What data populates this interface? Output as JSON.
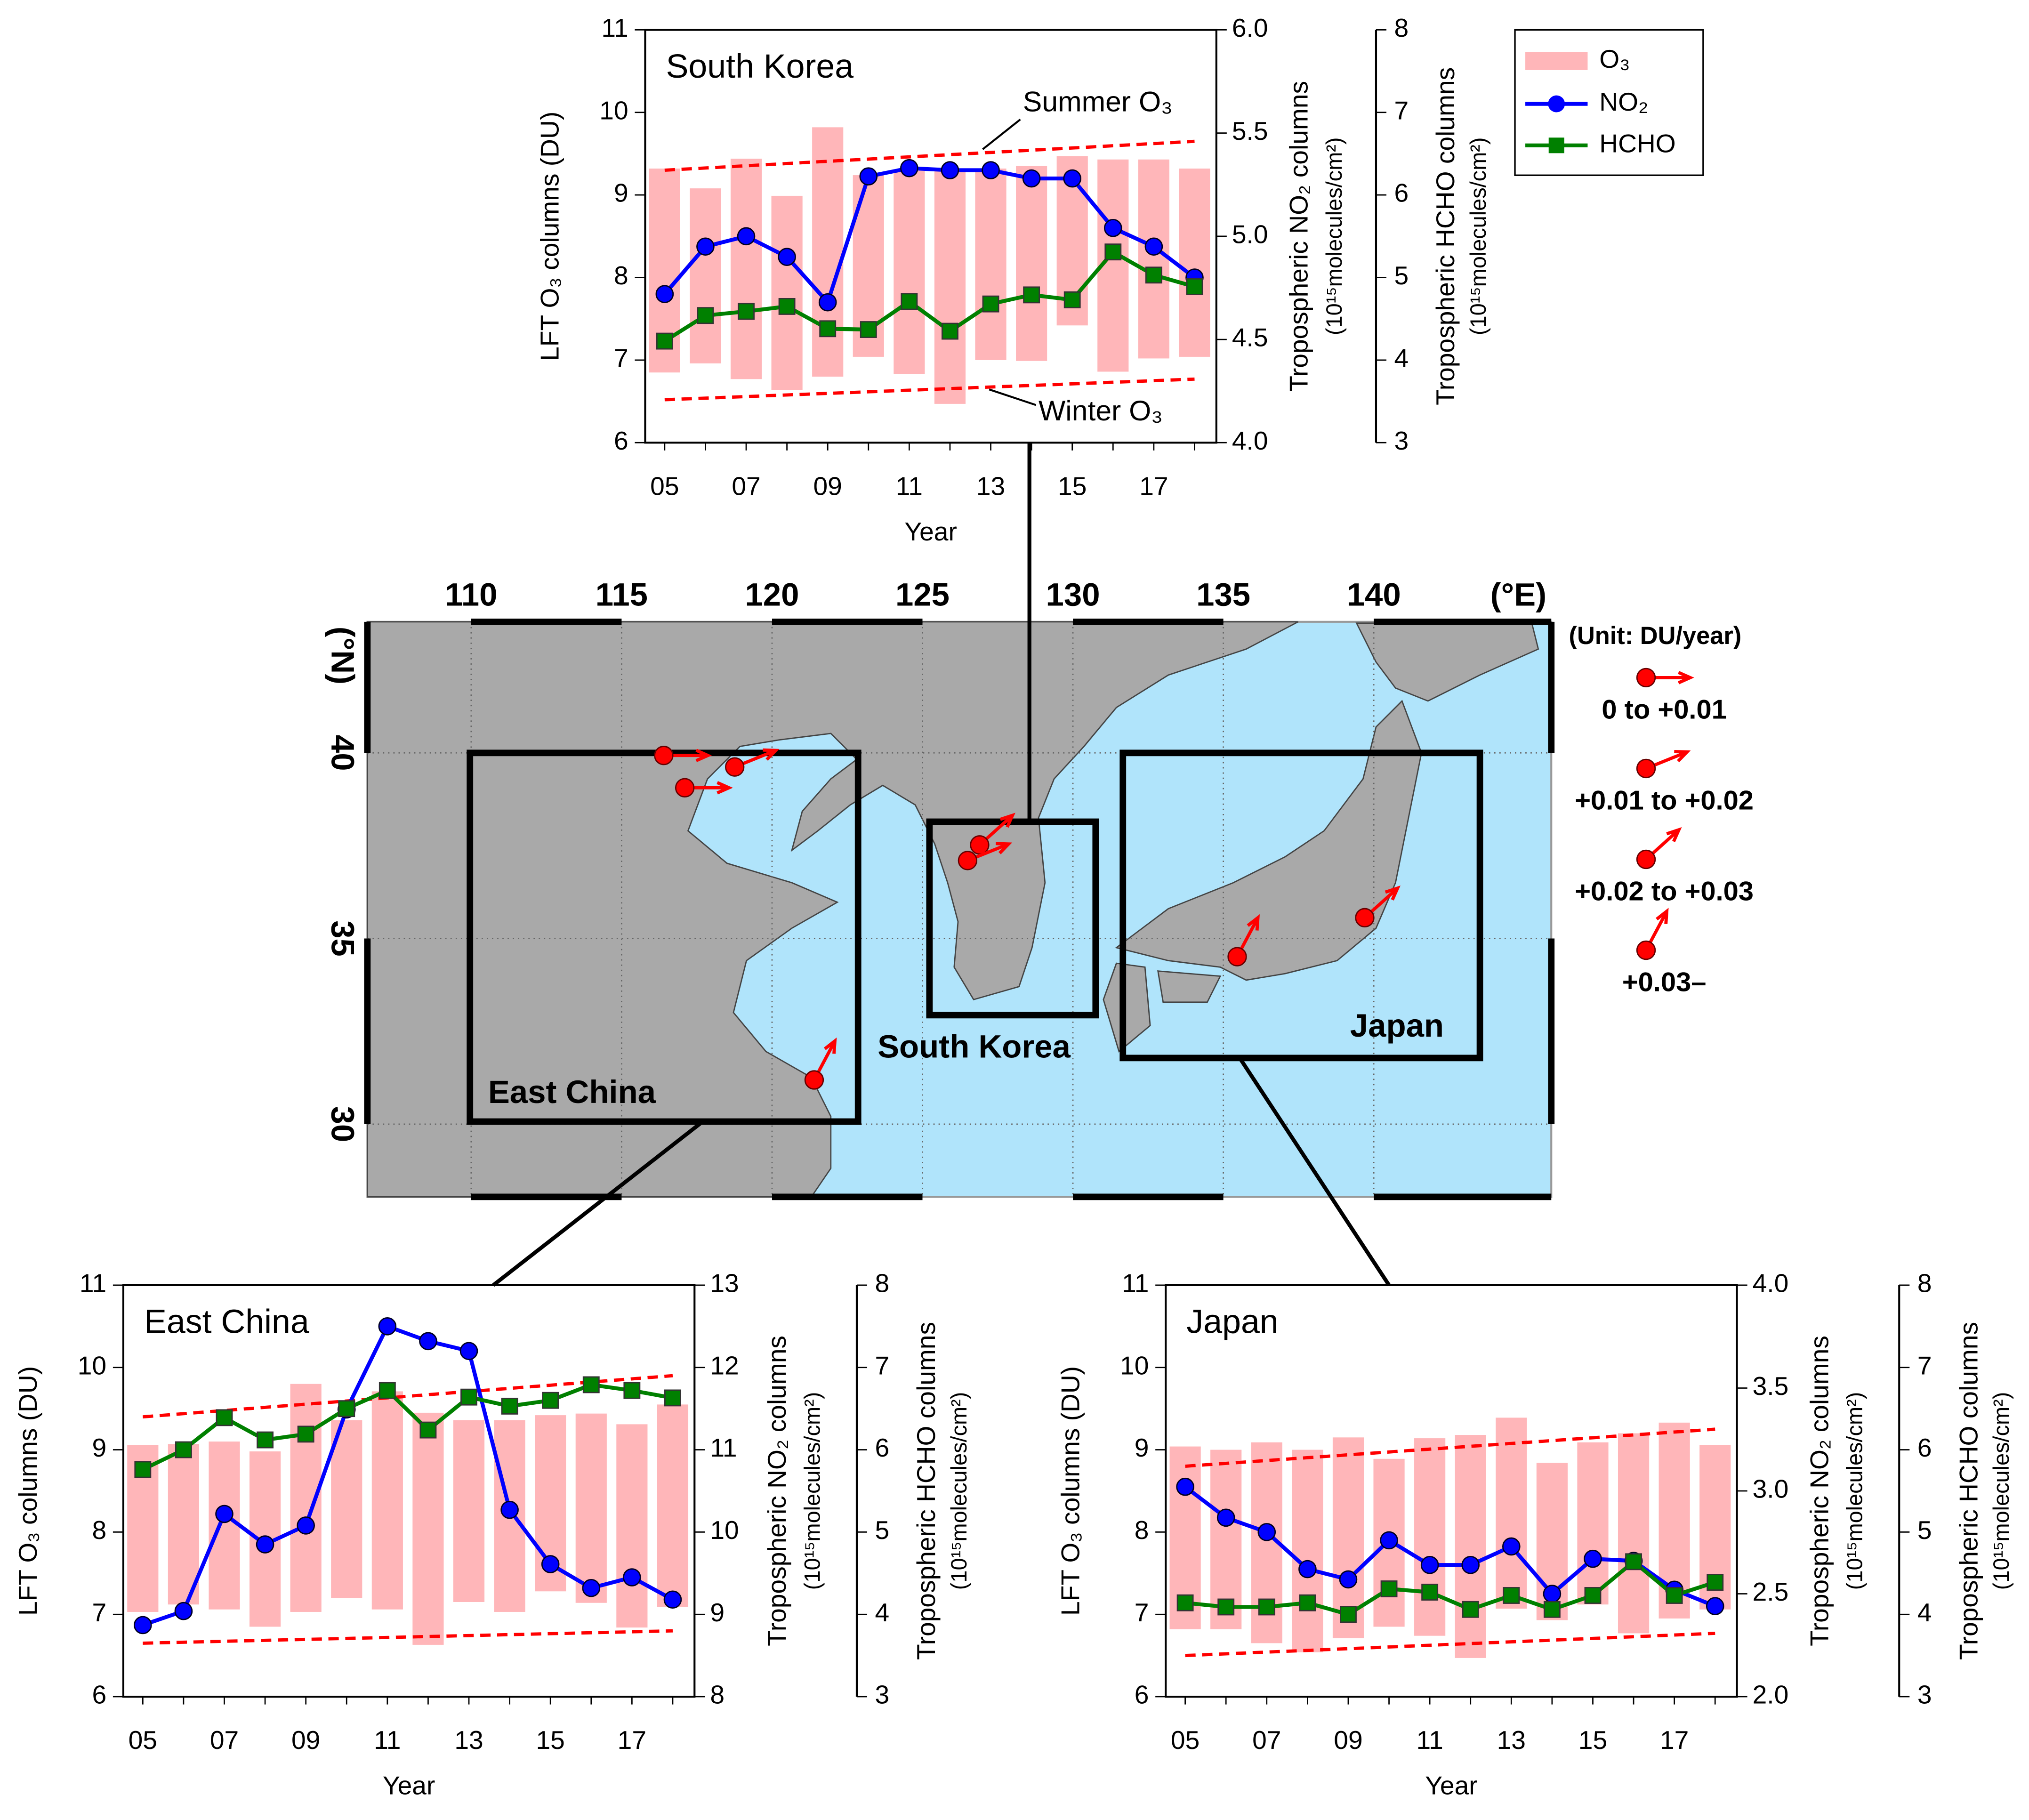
{
  "chart_data": [
    {
      "type": "bar-line",
      "title": "South Korea",
      "xlabel": "Year",
      "ylabel": "LFT O₃ columns (DU)",
      "y2label": "Tropospheric NO₂ columns",
      "y2unit": "(10¹⁵molecules/cm²)",
      "y3label": "Tropospheric HCHO columns",
      "y3unit": "(10¹⁵molecules/cm²)",
      "categories": [
        "05",
        null,
        "07",
        null,
        "09",
        null,
        "11",
        null,
        "13",
        null,
        "15",
        null,
        "17",
        null
      ],
      "ylim": [
        6,
        11
      ],
      "yticks": [
        6,
        7,
        8,
        9,
        10,
        11
      ],
      "y2lim": [
        4,
        6
      ],
      "y2ticks": [
        {
          "value": 4,
          "label": "4.0"
        },
        4.5,
        {
          "value": 5,
          "label": "5.0"
        },
        5.5,
        {
          "value": 6,
          "label": "6.0"
        }
      ],
      "y3lim": [
        3,
        8
      ],
      "y3ticks": [
        3,
        4,
        5,
        6,
        7,
        8
      ],
      "series": [
        {
          "name": "O₃",
          "color": "#ffb6b9",
          "low": [
            6.85,
            6.96,
            6.77,
            6.64,
            6.8,
            7.04,
            6.83,
            6.47,
            7.0,
            6.99,
            7.42,
            6.86,
            7.02,
            7.04
          ],
          "high": [
            9.32,
            9.08,
            9.44,
            8.99,
            9.82,
            9.24,
            9.3,
            9.29,
            9.32,
            9.35,
            9.47,
            9.43,
            9.43,
            9.32
          ]
        },
        {
          "name": "NO₂",
          "color": "#0000ff",
          "axis": "y2",
          "values": [
            4.72,
            4.95,
            5.0,
            4.9,
            4.68,
            5.29,
            5.33,
            5.32,
            5.32,
            5.28,
            5.28,
            5.04,
            4.95,
            4.8
          ]
        },
        {
          "name": "HCHO",
          "color": "#008000",
          "axis": "y3",
          "values": [
            4.23,
            4.54,
            4.59,
            4.65,
            4.38,
            4.37,
            4.71,
            4.35,
            4.68,
            4.79,
            4.73,
            5.31,
            5.03,
            4.89
          ]
        }
      ],
      "summer_trend": [
        9.3,
        9.65
      ],
      "winter_trend": [
        6.52,
        6.77
      ],
      "annotations": [
        "Summer O₃",
        "Winter O₃"
      ]
    },
    {
      "type": "bar-line",
      "title": "East China",
      "xlabel": "Year",
      "ylabel": "LFT O₃ columns (DU)",
      "y2label": "Tropospheric NO₂ columns",
      "y2unit": "(10¹⁵molecules/cm²)",
      "y3label": "Tropospheric HCHO columns",
      "y3unit": "(10¹⁵molecules/cm²)",
      "categories": [
        "05",
        null,
        "07",
        null,
        "09",
        null,
        "11",
        null,
        "13",
        null,
        "15",
        null,
        "17",
        null
      ],
      "ylim": [
        6,
        11
      ],
      "yticks": [
        6,
        7,
        8,
        9,
        10,
        11
      ],
      "y2lim": [
        8,
        13
      ],
      "y2ticks": [
        8,
        9,
        10,
        11,
        12,
        13
      ],
      "y3lim": [
        3,
        8
      ],
      "y3ticks": [
        3,
        4,
        5,
        6,
        7,
        8
      ],
      "series": [
        {
          "color": "#ffb6b9",
          "low": [
            7.03,
            7.12,
            7.06,
            6.85,
            7.03,
            7.2,
            7.06,
            6.63,
            7.15,
            7.03,
            7.28,
            7.14,
            6.84,
            7.09
          ],
          "high": [
            9.06,
            9.07,
            9.1,
            8.98,
            9.8,
            9.36,
            9.71,
            9.45,
            9.36,
            9.36,
            9.42,
            9.44,
            9.31,
            9.55
          ]
        },
        {
          "color": "#0000ff",
          "axis": "y2",
          "values": [
            8.87,
            9.04,
            10.22,
            9.85,
            10.08,
            11.49,
            12.5,
            12.32,
            12.2,
            10.27,
            9.61,
            9.32,
            9.45,
            9.18
          ]
        },
        {
          "color": "#008000",
          "axis": "y3",
          "values": [
            5.76,
            6.0,
            6.39,
            6.12,
            6.19,
            6.5,
            6.72,
            6.24,
            6.64,
            6.53,
            6.6,
            6.79,
            6.72,
            6.63
          ]
        }
      ],
      "summer_trend": [
        9.4,
        9.9
      ],
      "winter_trend": [
        6.65,
        6.8
      ]
    },
    {
      "type": "bar-line",
      "title": "Japan",
      "xlabel": "Year",
      "ylabel": "LFT O₃ columns (DU)",
      "y2label": "Tropospheric NO₂ columns",
      "y2unit": "(10¹⁵molecules/cm²)",
      "y3label": "Tropospheric HCHO columns",
      "y3unit": "(10¹⁵molecules/cm²)",
      "categories": [
        "05",
        null,
        "07",
        null,
        "09",
        null,
        "11",
        null,
        "13",
        null,
        "15",
        null,
        "17",
        null
      ],
      "ylim": [
        6,
        11
      ],
      "yticks": [
        6,
        7,
        8,
        9,
        10,
        11
      ],
      "y2lim": [
        2,
        4
      ],
      "y2ticks": [
        {
          "value": 2,
          "label": "2.0"
        },
        2.5,
        {
          "value": 3,
          "label": "3.0"
        },
        3.5,
        {
          "value": 4,
          "label": "4.0"
        }
      ],
      "y3lim": [
        3,
        8
      ],
      "y3ticks": [
        3,
        4,
        5,
        6,
        7,
        8
      ],
      "series": [
        {
          "color": "#ffb6b9",
          "low": [
            6.82,
            6.82,
            6.65,
            6.54,
            6.71,
            6.85,
            6.74,
            6.47,
            7.07,
            6.93,
            7.12,
            6.77,
            6.95,
            7.06
          ],
          "high": [
            9.04,
            9.0,
            9.09,
            9.0,
            9.15,
            8.89,
            9.14,
            9.18,
            9.39,
            8.84,
            9.09,
            9.2,
            9.33,
            9.06
          ]
        },
        {
          "color": "#0000ff",
          "axis": "y2",
          "values": [
            3.02,
            2.87,
            2.8,
            2.62,
            2.57,
            2.76,
            2.64,
            2.64,
            2.73,
            2.5,
            2.67,
            2.66,
            2.52,
            2.44
          ]
        },
        {
          "color": "#008000",
          "axis": "y3",
          "values": [
            4.14,
            4.09,
            4.09,
            4.14,
            4.0,
            4.31,
            4.27,
            4.06,
            4.23,
            4.06,
            4.23,
            4.64,
            4.23,
            4.39
          ]
        }
      ],
      "summer_trend": [
        8.8,
        9.25
      ],
      "winter_trend": [
        6.5,
        6.77
      ]
    }
  ],
  "map": {
    "xlim": [
      106.55,
      145.9
    ],
    "ylim": [
      28.04,
      43.53
    ],
    "xticks": [
      110,
      115,
      120,
      125,
      130,
      135,
      140
    ],
    "x_unit": "(°E)",
    "yticks": [
      30,
      35,
      40
    ],
    "y_unit": "(°N)",
    "regions": [
      "East China",
      "South Korea",
      "Japan"
    ],
    "legend_title": "(Unit: DU/year)",
    "classes": [
      "0 to +0.01",
      "+0.01 to +0.02",
      "+0.02 to +0.03",
      "+0.03–"
    ],
    "sites": [
      {
        "lon": 116.4,
        "lat": 39.93,
        "class": 0
      },
      {
        "lon": 118.76,
        "lat": 39.62,
        "class": 1
      },
      {
        "lon": 117.1,
        "lat": 39.06,
        "class": 0
      },
      {
        "lon": 121.4,
        "lat": 31.19,
        "class": 3
      },
      {
        "lon": 126.9,
        "lat": 37.52,
        "class": 2
      },
      {
        "lon": 126.5,
        "lat": 37.1,
        "class": 1
      },
      {
        "lon": 135.46,
        "lat": 34.51,
        "class": 3
      },
      {
        "lon": 139.7,
        "lat": 35.56,
        "class": 2
      }
    ]
  }
}
